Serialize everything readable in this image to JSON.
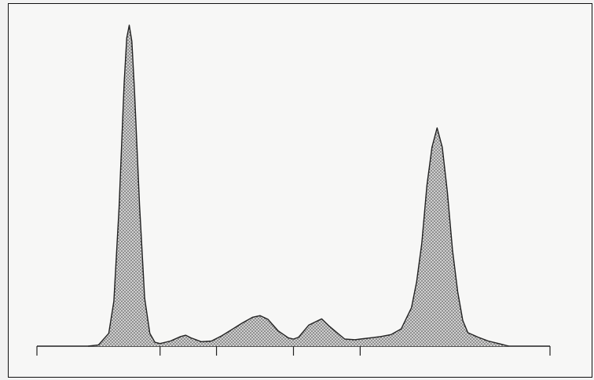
{
  "chart_data": {
    "type": "area",
    "title": "",
    "xlabel": "",
    "ylabel": "",
    "fill_pattern": "stipple",
    "line_color": "#222222",
    "fill_color": "#cfcfcf",
    "xlim": [
      0,
      100
    ],
    "ylim": [
      0,
      100
    ],
    "x_ticks": [
      0,
      24,
      35,
      50,
      63,
      100
    ],
    "series": [
      {
        "peaks": [
          {
            "center": 18.0,
            "height": 100,
            "width": 1.3
          },
          {
            "center": 29.0,
            "height": 3.4,
            "width": 1.1
          },
          {
            "center": 43.5,
            "height": 9.5,
            "width": 1.6
          },
          {
            "center": 55.5,
            "height": 8.5,
            "width": 1.5
          },
          {
            "center": 58.3,
            "height": 2.6,
            "width": 1.5
          },
          {
            "center": 68.0,
            "height": 2.2,
            "width": 5.5
          },
          {
            "center": 78.0,
            "height": 68.0,
            "width": 1.7
          },
          {
            "center": 84.0,
            "height": 2.0,
            "width": 5.0
          }
        ],
        "x": [
          10,
          12,
          14,
          15,
          16,
          17,
          17.5,
          18,
          18.5,
          19,
          20,
          21,
          22,
          23,
          24,
          26,
          28,
          29,
          30,
          32,
          34,
          36,
          38,
          40,
          42,
          43.5,
          45,
          47,
          49,
          50,
          51,
          53,
          55.5,
          57,
          58.5,
          60,
          62,
          63,
          65,
          67,
          69,
          71,
          73,
          74,
          75,
          76,
          77,
          78,
          79,
          80,
          81,
          82,
          83,
          84,
          86,
          88,
          90,
          92
        ],
        "y": [
          0,
          0.4,
          4,
          14,
          43,
          82,
          96,
          100,
          95,
          80,
          44,
          15,
          4,
          1.2,
          0.8,
          1.6,
          3,
          3.4,
          2.6,
          1.4,
          1.6,
          3.2,
          5.2,
          7.2,
          9,
          9.5,
          8.4,
          4.8,
          2.6,
          2.2,
          2.8,
          6.6,
          8.5,
          6.2,
          4.2,
          2.2,
          2.0,
          2.2,
          2.6,
          3.0,
          3.6,
          5.4,
          12,
          20,
          32,
          50,
          62,
          68,
          62,
          48,
          30,
          17,
          8,
          4.2,
          2.8,
          1.6,
          0.8,
          0
        ]
      }
    ]
  }
}
